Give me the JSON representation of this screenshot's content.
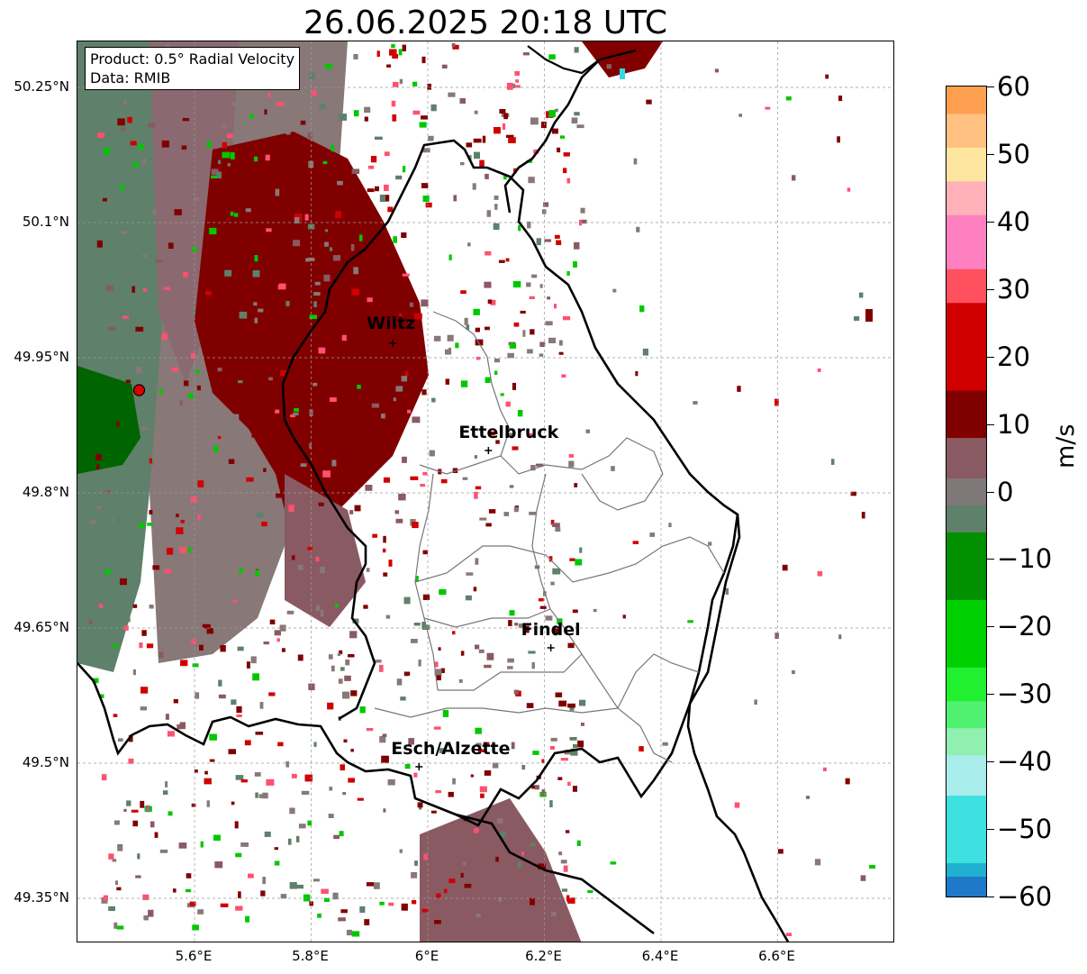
{
  "title": "26.06.2025 20:18 UTC",
  "info_box": {
    "product": "Product: 0.5° Radial Velocity",
    "source": "Data: RMIB"
  },
  "cities": [
    {
      "name": "Wiltz",
      "lon": 5.94,
      "lat": 49.966
    },
    {
      "name": "Ettelbruck",
      "lon": 6.104,
      "lat": 49.847
    },
    {
      "name": "Findel",
      "lon": 6.211,
      "lat": 49.628
    },
    {
      "name": "Esch/Alzette",
      "lon": 5.985,
      "lat": 49.496
    }
  ],
  "radar_site": {
    "lon": 5.505,
    "lat": 49.914,
    "color": "#e00000"
  },
  "axes": {
    "lon_range": [
      5.4,
      6.8
    ],
    "lat_range": [
      49.3,
      50.3
    ],
    "lon_ticks": [
      "5.6°E",
      "5.8°E",
      "6°E",
      "6.2°E",
      "6.4°E",
      "6.6°E"
    ],
    "lon_tick_values": [
      5.6,
      5.8,
      6.0,
      6.2,
      6.4,
      6.6
    ],
    "lat_ticks": [
      "50.25°N",
      "50.1°N",
      "49.95°N",
      "49.8°N",
      "49.65°N",
      "49.5°N",
      "49.35°N"
    ],
    "lat_tick_values": [
      50.25,
      50.1,
      49.95,
      49.8,
      49.65,
      49.5,
      49.35
    ],
    "grid": true
  },
  "colorbar": {
    "unit": "m/s",
    "range": [
      -60,
      60
    ],
    "ticks": [
      "60",
      "50",
      "40",
      "30",
      "20",
      "10",
      "0",
      "−10",
      "−20",
      "−30",
      "−40",
      "−50",
      "−60"
    ],
    "tick_values": [
      60,
      50,
      40,
      30,
      20,
      10,
      0,
      -10,
      -20,
      -30,
      -40,
      -50,
      -60
    ],
    "colors": [
      {
        "from": -60,
        "to": -57,
        "color": "#1f78c8"
      },
      {
        "from": -57,
        "to": -55,
        "color": "#20b0d0"
      },
      {
        "from": -55,
        "to": -45,
        "color": "#3fe0e0"
      },
      {
        "from": -45,
        "to": -39,
        "color": "#a8ecec"
      },
      {
        "from": -39,
        "to": -35,
        "color": "#90f0b0"
      },
      {
        "from": -35,
        "to": -31,
        "color": "#50f070"
      },
      {
        "from": -31,
        "to": -26,
        "color": "#20f030"
      },
      {
        "from": -26,
        "to": -16,
        "color": "#00d000"
      },
      {
        "from": -16,
        "to": -6,
        "color": "#009000"
      },
      {
        "from": -6,
        "to": -2,
        "color": "#5f806a"
      },
      {
        "from": -2,
        "to": 2,
        "color": "#7f7878"
      },
      {
        "from": 2,
        "to": 8,
        "color": "#8a5a62"
      },
      {
        "from": 8,
        "to": 15,
        "color": "#800000"
      },
      {
        "from": 15,
        "to": 28,
        "color": "#d00000"
      },
      {
        "from": 28,
        "to": 33,
        "color": "#ff5060"
      },
      {
        "from": 33,
        "to": 41,
        "color": "#ff80c0"
      },
      {
        "from": 41,
        "to": 46,
        "color": "#ffb0b8"
      },
      {
        "from": 46,
        "to": 51,
        "color": "#ffe6a0"
      },
      {
        "from": 51,
        "to": 56,
        "color": "#ffc080"
      },
      {
        "from": 56,
        "to": 60,
        "color": "#ffa050"
      }
    ]
  },
  "colors": {
    "inbound_strong": "#006400",
    "inbound": "#5f806a",
    "zero": "#887878",
    "outbound": "#8a5a62",
    "outbound_strong": "#800000",
    "accent_red": "#d00000",
    "accent_green": "#00c800",
    "accent_pink": "#ff5070",
    "accent_cyan": "#30d8e0"
  }
}
